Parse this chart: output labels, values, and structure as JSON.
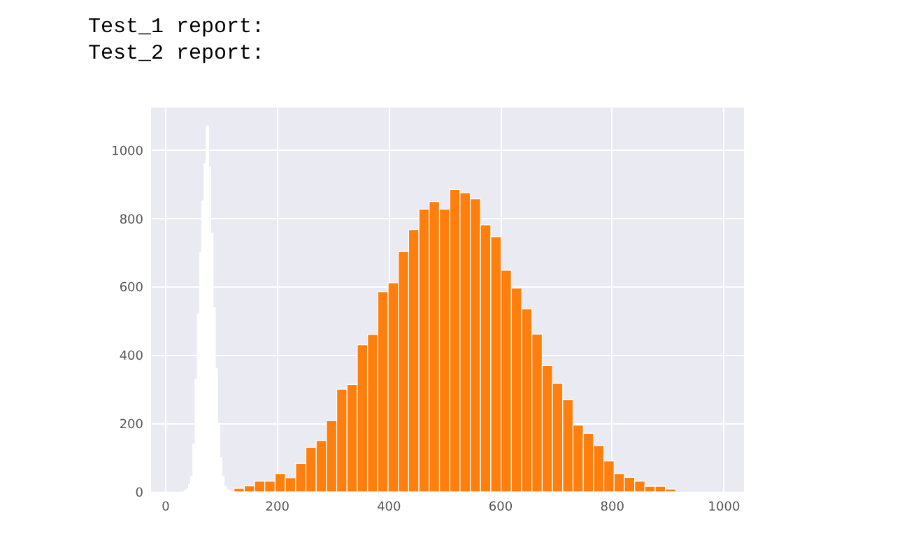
{
  "chart_data": {
    "type": "histogram",
    "title": "Test_1 report:",
    "subtitle": "Test_2 report:",
    "bins": [
      34,
      38,
      42,
      46,
      50,
      54,
      58,
      62,
      66,
      70,
      74,
      78,
      82,
      86,
      90,
      94,
      98,
      102,
      106,
      110,
      114,
      118,
      123.6,
      142,
      160.4,
      178.8,
      197.2,
      215.6,
      234,
      252.4,
      270.8,
      289.2,
      307.6,
      326,
      344.4,
      362.8,
      381.2,
      399.6,
      418,
      436.4,
      454.8,
      473.2,
      491.6,
      510,
      528.4,
      546.8,
      565.2,
      583.6,
      602,
      620.4,
      638.8,
      657.2,
      675.6,
      694,
      712.4,
      730.8,
      749.2,
      767.6,
      786,
      804.4,
      822.8,
      841.2,
      859.6,
      878,
      896.4,
      914.8
    ],
    "series": [
      {
        "color": "#ffffff",
        "values": [
          3,
          8,
          22,
          45,
          140,
          330,
          520,
          700,
          850,
          960,
          1070,
          950,
          756,
          539,
          360,
          200,
          100,
          45,
          15,
          6,
          3,
          null,
          null,
          null,
          null,
          null,
          null,
          null,
          null,
          null,
          null,
          null,
          null,
          null,
          null,
          null,
          null,
          null,
          null,
          null,
          null,
          null,
          null,
          null,
          null,
          null,
          null,
          null,
          null,
          null,
          null,
          null,
          null,
          null,
          null,
          null,
          null,
          null,
          null,
          null,
          null,
          null,
          null,
          null,
          null
        ]
      },
      {
        "color": "#ff7f0e",
        "values": [
          null,
          null,
          null,
          null,
          null,
          null,
          null,
          null,
          null,
          null,
          null,
          null,
          null,
          null,
          null,
          null,
          null,
          null,
          null,
          null,
          null,
          null,
          10,
          17,
          31,
          31,
          53,
          41,
          83,
          130,
          150,
          208,
          300,
          314,
          430,
          460,
          585,
          611,
          702,
          767,
          827,
          849,
          827,
          884,
          875,
          857,
          781,
          746,
          648,
          596,
          535,
          461,
          369,
          317,
          269,
          195,
          171,
          135,
          90,
          53,
          42,
          31,
          16,
          16,
          8
        ]
      }
    ],
    "xlim": [
      -25,
      1037
    ],
    "ylim": [
      0,
      1124
    ],
    "xticks": [
      0,
      200,
      400,
      600,
      800,
      1000
    ],
    "yticks": [
      0,
      200,
      400,
      600,
      800,
      1000
    ],
    "grid": true
  }
}
